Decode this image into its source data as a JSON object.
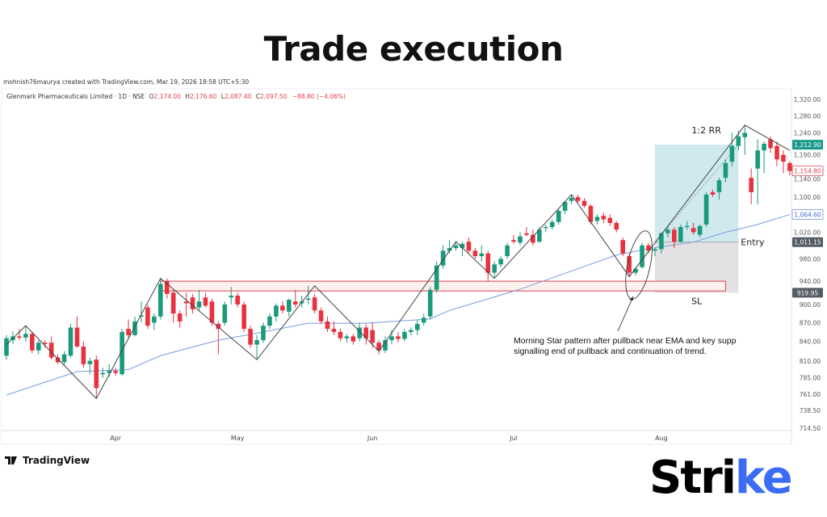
{
  "header": {
    "title": "Trade execution"
  },
  "credit": "mohnish76maurya created with TradingView.com, Mar 19, 2026 18:58 UTC+5:30",
  "legend": {
    "symbol": "Glenmark Pharmaceuticals Limited · 1D · NSE",
    "o_label": "O",
    "o": "2,174.00",
    "h_label": "H",
    "h": "2,176.60",
    "l_label": "L",
    "l": "2,087.40",
    "c_label": "C",
    "c": "2,097.50",
    "change": "−88.80 (−4.06%)"
  },
  "footer": {
    "tradingview": "TradingView",
    "brand": "Strike"
  },
  "colors": {
    "up": "#1a9a7c",
    "down": "#e8323f",
    "ema": "#7a9be0",
    "zone": "#e04050",
    "target": "#cfe9ee",
    "stop": "#e2e2e4",
    "brand_accent": "#3a6cf4"
  },
  "chart_data": {
    "type": "candlestick",
    "y_scale": "log",
    "ylim": [
      705,
      1340
    ],
    "y_ticks": [
      "1,320.00",
      "1,280.00",
      "1,240.00",
      "1,190.00",
      "1,140.00",
      "1,100.00",
      "1,020.00",
      "980.00",
      "940.00",
      "900.00",
      "870.00",
      "840.00",
      "810.00",
      "785.00",
      "761.00",
      "738.50",
      "714.50"
    ],
    "y_tick_values": [
      1320,
      1280,
      1240,
      1190,
      1140,
      1100,
      1020,
      980,
      940,
      900,
      870,
      840,
      810,
      785,
      761,
      738.5,
      714.5
    ],
    "x_ticks": [
      {
        "label": "Apr",
        "index": 17
      },
      {
        "label": "May",
        "index": 36
      },
      {
        "label": "Jun",
        "index": 57
      },
      {
        "label": "Jul",
        "index": 79
      },
      {
        "label": "Aug",
        "index": 102
      }
    ],
    "candles_ohlc": [
      [
        818,
        850,
        812,
        845
      ],
      [
        842,
        856,
        836,
        848
      ],
      [
        848,
        860,
        842,
        846
      ],
      [
        846,
        866,
        840,
        852
      ],
      [
        852,
        855,
        822,
        826
      ],
      [
        826,
        842,
        820,
        838
      ],
      [
        838,
        842,
        830,
        836
      ],
      [
        838,
        848,
        812,
        815
      ],
      [
        815,
        820,
        805,
        808
      ],
      [
        808,
        825,
        802,
        820
      ],
      [
        818,
        868,
        815,
        862
      ],
      [
        862,
        880,
        830,
        832
      ],
      [
        832,
        840,
        800,
        805
      ],
      [
        805,
        815,
        790,
        810
      ],
      [
        812,
        818,
        755,
        770
      ],
      [
        790,
        800,
        785,
        792
      ],
      [
        792,
        805,
        786,
        795
      ],
      [
        795,
        800,
        788,
        792
      ],
      [
        790,
        860,
        788,
        855
      ],
      [
        860,
        875,
        845,
        850
      ],
      [
        850,
        880,
        848,
        872
      ],
      [
        880,
        905,
        870,
        882
      ],
      [
        895,
        900,
        860,
        865
      ],
      [
        870,
        885,
        858,
        880
      ],
      [
        880,
        945,
        875,
        935
      ],
      [
        940,
        945,
        910,
        918
      ],
      [
        920,
        925,
        870,
        885
      ],
      [
        885,
        890,
        862,
        872
      ],
      [
        905,
        920,
        880,
        902
      ],
      [
        912,
        918,
        885,
        892
      ],
      [
        895,
        925,
        890,
        905
      ],
      [
        912,
        920,
        895,
        898
      ],
      [
        905,
        910,
        865,
        870
      ],
      [
        868,
        872,
        820,
        860
      ],
      [
        870,
        905,
        865,
        900
      ],
      [
        912,
        930,
        900,
        915
      ],
      [
        915,
        920,
        895,
        900
      ],
      [
        900,
        905,
        855,
        860
      ],
      [
        860,
        865,
        830,
        835
      ],
      [
        835,
        850,
        812,
        842
      ],
      [
        842,
        870,
        838,
        865
      ],
      [
        865,
        885,
        860,
        880
      ],
      [
        880,
        902,
        872,
        898
      ],
      [
        898,
        905,
        885,
        890
      ],
      [
        888,
        910,
        880,
        908
      ],
      [
        905,
        925,
        895,
        900
      ],
      [
        902,
        915,
        895,
        905
      ],
      [
        908,
        932,
        900,
        910
      ],
      [
        912,
        918,
        885,
        890
      ],
      [
        890,
        895,
        868,
        872
      ],
      [
        872,
        880,
        855,
        860
      ],
      [
        860,
        872,
        850,
        855
      ],
      [
        855,
        860,
        840,
        845
      ],
      [
        845,
        852,
        838,
        848
      ],
      [
        848,
        852,
        835,
        840
      ],
      [
        845,
        870,
        840,
        862
      ],
      [
        862,
        868,
        835,
        845
      ],
      [
        858,
        870,
        830,
        838
      ],
      [
        838,
        842,
        820,
        826
      ],
      [
        826,
        848,
        822,
        842
      ],
      [
        842,
        858,
        836,
        848
      ],
      [
        848,
        855,
        838,
        844
      ],
      [
        844,
        860,
        840,
        855
      ],
      [
        855,
        862,
        850,
        858
      ],
      [
        858,
        875,
        850,
        868
      ],
      [
        870,
        885,
        865,
        878
      ],
      [
        880,
        930,
        875,
        925
      ],
      [
        925,
        975,
        920,
        968
      ],
      [
        968,
        1005,
        962,
        995
      ],
      [
        995,
        1015,
        990,
        1000
      ],
      [
        1000,
        1010,
        995,
        1005
      ],
      [
        1000,
        1012,
        985,
        1008
      ],
      [
        1012,
        1020,
        990,
        995
      ],
      [
        995,
        1000,
        980,
        985
      ],
      [
        985,
        1005,
        975,
        990
      ],
      [
        990,
        995,
        940,
        955
      ],
      [
        955,
        975,
        945,
        970
      ],
      [
        970,
        985,
        965,
        980
      ],
      [
        985,
        1010,
        980,
        1005
      ],
      [
        1015,
        1025,
        1008,
        1012
      ],
      [
        1010,
        1030,
        1005,
        1022
      ],
      [
        1028,
        1040,
        1022,
        1025
      ],
      [
        1025,
        1035,
        1005,
        1010
      ],
      [
        1012,
        1040,
        1010,
        1035
      ],
      [
        1038,
        1045,
        1030,
        1040
      ],
      [
        1040,
        1055,
        1035,
        1050
      ],
      [
        1050,
        1075,
        1045,
        1072
      ],
      [
        1072,
        1092,
        1065,
        1090
      ],
      [
        1092,
        1105,
        1085,
        1098
      ],
      [
        1100,
        1105,
        1088,
        1092
      ],
      [
        1092,
        1098,
        1078,
        1082
      ],
      [
        1082,
        1085,
        1045,
        1050
      ],
      [
        1052,
        1065,
        1045,
        1060
      ],
      [
        1062,
        1068,
        1048,
        1055
      ],
      [
        1058,
        1065,
        1042,
        1048
      ],
      [
        1048,
        1052,
        1030,
        1035
      ],
      [
        1015,
        1020,
        985,
        990
      ],
      [
        985,
        990,
        948,
        955
      ],
      [
        955,
        965,
        950,
        962
      ],
      [
        965,
        1010,
        962,
        1005
      ],
      [
        1005,
        1010,
        990,
        995
      ],
      [
        995,
        1000,
        985,
        998
      ],
      [
        998,
        1030,
        990,
        1028
      ],
      [
        1028,
        1040,
        1020,
        1035
      ],
      [
        1035,
        1040,
        1000,
        1012
      ],
      [
        1012,
        1045,
        1010,
        1040
      ],
      [
        1040,
        1052,
        1035,
        1042
      ],
      [
        1038,
        1048,
        1025,
        1030
      ],
      [
        1025,
        1045,
        1020,
        1042
      ],
      [
        1045,
        1110,
        1040,
        1105
      ],
      [
        1110,
        1115,
        1100,
        1105
      ],
      [
        1110,
        1140,
        1095,
        1135
      ],
      [
        1140,
        1180,
        1130,
        1172
      ],
      [
        1175,
        1240,
        1165,
        1210
      ],
      [
        1210,
        1245,
        1200,
        1232
      ],
      [
        1230,
        1258,
        1190,
        1240
      ],
      [
        1140,
        1160,
        1085,
        1110
      ],
      [
        1160,
        1225,
        1085,
        1200
      ],
      [
        1200,
        1220,
        1150,
        1215
      ],
      [
        1225,
        1232,
        1195,
        1205
      ],
      [
        1210,
        1220,
        1165,
        1180
      ],
      [
        1190,
        1200,
        1150,
        1175
      ],
      [
        1172,
        1176,
        1145,
        1154.8
      ]
    ],
    "ema": [
      [
        0,
        760
      ],
      [
        11,
        794
      ],
      [
        19,
        797
      ],
      [
        24,
        818
      ],
      [
        33,
        842
      ],
      [
        39,
        853
      ],
      [
        47,
        869
      ],
      [
        56,
        869
      ],
      [
        66,
        876
      ],
      [
        69,
        890
      ],
      [
        80,
        926
      ],
      [
        87,
        954
      ],
      [
        95,
        987
      ],
      [
        100,
        999
      ],
      [
        107,
        1011
      ],
      [
        112,
        1030
      ],
      [
        117,
        1045
      ],
      [
        122,
        1064.6
      ]
    ],
    "zigzag": [
      [
        0,
        835
      ],
      [
        3,
        865
      ],
      [
        14,
        755
      ],
      [
        24,
        945
      ],
      [
        39,
        812
      ],
      [
        48,
        932
      ],
      [
        58,
        825
      ],
      [
        70,
        1012
      ],
      [
        76,
        945
      ],
      [
        88,
        1105
      ],
      [
        97,
        948
      ],
      [
        115,
        1258
      ],
      [
        122,
        1200
      ]
    ],
    "support_zone": {
      "from_index": 24,
      "to_index": 112,
      "top": 940,
      "bottom": 923
    },
    "position": {
      "from_index": 101,
      "to_index": 114,
      "entry": 1011.15,
      "stop": 919.95,
      "target": 1212.9,
      "rr_label": "1:2 RR",
      "entry_label": "Entry",
      "sl_label": "SL"
    },
    "price_labels": [
      {
        "text": "1,212.90",
        "value": 1212.9,
        "style": "target"
      },
      {
        "text": "1,154.80",
        "value": 1154.8,
        "style": "last"
      },
      {
        "text": "1,064.60",
        "value": 1064.6,
        "style": "ema"
      },
      {
        "text": "1,011.15",
        "value": 1011.15,
        "style": "dark"
      },
      {
        "text": "919.95",
        "value": 919.95,
        "style": "dark"
      }
    ],
    "annotation": {
      "line1": "Morning Star pattern after pullback near EMA and key supp",
      "line2": "signalling end of pullback and continuation of trend.",
      "ellipse_index": 98
    }
  }
}
